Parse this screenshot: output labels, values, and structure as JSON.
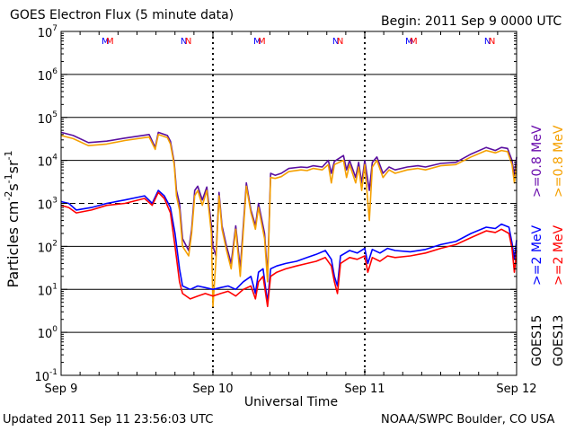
{
  "header": {
    "title": "GOES Electron Flux (5 minute data)",
    "begin": "Begin: 2011 Sep 9 0000 UTC"
  },
  "footer": {
    "updated": "Updated 2011 Sep 11 23:56:03 UTC",
    "credit": "NOAA/SWPC Boulder, CO USA"
  },
  "chart_data": {
    "type": "line",
    "title": "GOES Electron Flux (5 minute data)",
    "xlabel": "Universal Time",
    "ylabel": "Particles cm-2s-1sr-1",
    "yscale": "log",
    "ylim": [
      0.1,
      10000000
    ],
    "xlim": [
      0,
      3
    ],
    "x_unit": "days since 2011 Sep 9 0000 UTC",
    "x_ticks": [
      {
        "value": 0,
        "label": "Sep 9"
      },
      {
        "value": 1,
        "label": "Sep 10"
      },
      {
        "value": 2,
        "label": "Sep 11"
      },
      {
        "value": 3,
        "label": "Sep 12"
      }
    ],
    "y_ticks": [
      {
        "value": 0.1,
        "base": "10",
        "exp": "-1"
      },
      {
        "value": 1,
        "base": "10",
        "exp": "0"
      },
      {
        "value": 10,
        "base": "10",
        "exp": "1"
      },
      {
        "value": 100,
        "base": "10",
        "exp": "2"
      },
      {
        "value": 1000,
        "base": "10",
        "exp": "3"
      },
      {
        "value": 10000,
        "base": "10",
        "exp": "4"
      },
      {
        "value": 100000,
        "base": "10",
        "exp": "5"
      },
      {
        "value": 1000000,
        "base": "10",
        "exp": "6"
      },
      {
        "value": 10000000,
        "base": "10",
        "exp": "7"
      }
    ],
    "solid_gridlines": [
      1,
      10,
      100,
      10000,
      100000,
      1000000
    ],
    "dashed_gridlines": [
      1000
    ],
    "day_boundaries_dotted": [
      1,
      2
    ],
    "local_noon_markers": [
      {
        "x": 0.29,
        "label": "M",
        "satellites": [
          "GOES15",
          "GOES13"
        ]
      },
      {
        "x": 0.81,
        "label": "N",
        "satellites": [
          "GOES15",
          "GOES13"
        ]
      },
      {
        "x": 1.29,
        "label": "M",
        "satellites": [
          "GOES15",
          "GOES13"
        ]
      },
      {
        "x": 1.81,
        "label": "N",
        "satellites": [
          "GOES15",
          "GOES13"
        ]
      },
      {
        "x": 2.29,
        "label": "M",
        "satellites": [
          "GOES15",
          "GOES13"
        ]
      },
      {
        "x": 2.81,
        "label": "N",
        "satellites": [
          "GOES15",
          "GOES13"
        ]
      }
    ],
    "legend": {
      "position": "right-vertical",
      "energies": [
        {
          "label": ">=2 MeV",
          "color_goes15": "#0000ff",
          "color_goes13": "#ff0000"
        },
        {
          "label": ">=0.8 MeV",
          "color_goes15": "#6a0dad",
          "color_goes13": "#f5a000"
        }
      ],
      "satellites": [
        "GOES15",
        "GOES13"
      ]
    },
    "series": [
      {
        "name": "GOES15 >=0.8 MeV",
        "color": "#5a0fa0",
        "points": [
          [
            0,
            45000
          ],
          [
            0.08,
            38000
          ],
          [
            0.18,
            26000
          ],
          [
            0.3,
            28000
          ],
          [
            0.42,
            33000
          ],
          [
            0.58,
            40000
          ],
          [
            0.62,
            20000
          ],
          [
            0.64,
            45000
          ],
          [
            0.7,
            38000
          ],
          [
            0.72,
            28000
          ],
          [
            0.745,
            9000
          ],
          [
            0.76,
            2000
          ],
          [
            0.78,
            1000
          ],
          [
            0.8,
            150
          ],
          [
            0.84,
            80
          ],
          [
            0.86,
            250
          ],
          [
            0.88,
            2000
          ],
          [
            0.9,
            2500
          ],
          [
            0.93,
            1200
          ],
          [
            0.96,
            2400
          ],
          [
            0.99,
            300
          ],
          [
            1.0,
            100
          ],
          [
            1.02,
            60
          ],
          [
            1.04,
            1800
          ],
          [
            1.06,
            300
          ],
          [
            1.09,
            100
          ],
          [
            1.12,
            40
          ],
          [
            1.15,
            300
          ],
          [
            1.18,
            30
          ],
          [
            1.22,
            3000
          ],
          [
            1.25,
            700
          ],
          [
            1.28,
            300
          ],
          [
            1.3,
            1000
          ],
          [
            1.34,
            200
          ],
          [
            1.36,
            20
          ],
          [
            1.38,
            5000
          ],
          [
            1.41,
            4500
          ],
          [
            1.45,
            5000
          ],
          [
            1.5,
            6500
          ],
          [
            1.58,
            7000
          ],
          [
            1.62,
            6800
          ],
          [
            1.66,
            7500
          ],
          [
            1.72,
            7000
          ],
          [
            1.76,
            10000
          ],
          [
            1.78,
            5000
          ],
          [
            1.8,
            9500
          ],
          [
            1.86,
            13000
          ],
          [
            1.88,
            6000
          ],
          [
            1.9,
            10000
          ],
          [
            1.94,
            4000
          ],
          [
            1.96,
            9000
          ],
          [
            1.98,
            3000
          ],
          [
            2.0,
            10000
          ],
          [
            2.03,
            2000
          ],
          [
            2.05,
            9000
          ],
          [
            2.08,
            12000
          ],
          [
            2.12,
            5000
          ],
          [
            2.16,
            7000
          ],
          [
            2.2,
            6000
          ],
          [
            2.28,
            7000
          ],
          [
            2.35,
            7500
          ],
          [
            2.4,
            7000
          ],
          [
            2.5,
            8500
          ],
          [
            2.6,
            9000
          ],
          [
            2.7,
            14000
          ],
          [
            2.8,
            20000
          ],
          [
            2.86,
            17000
          ],
          [
            2.9,
            20000
          ],
          [
            2.94,
            19000
          ],
          [
            2.97,
            10000
          ],
          [
            2.985,
            4500
          ],
          [
            3.0,
            12000
          ]
        ]
      },
      {
        "name": "GOES13 >=0.8 MeV",
        "color": "#f5a000",
        "points": [
          [
            0,
            38000
          ],
          [
            0.08,
            32000
          ],
          [
            0.18,
            22000
          ],
          [
            0.3,
            24000
          ],
          [
            0.42,
            29000
          ],
          [
            0.58,
            35000
          ],
          [
            0.62,
            18000
          ],
          [
            0.64,
            40000
          ],
          [
            0.7,
            34000
          ],
          [
            0.72,
            24000
          ],
          [
            0.745,
            8000
          ],
          [
            0.76,
            1500
          ],
          [
            0.78,
            700
          ],
          [
            0.8,
            100
          ],
          [
            0.84,
            60
          ],
          [
            0.86,
            200
          ],
          [
            0.88,
            1500
          ],
          [
            0.9,
            2000
          ],
          [
            0.93,
            900
          ],
          [
            0.96,
            2000
          ],
          [
            0.99,
            200
          ],
          [
            1.0,
            4
          ],
          [
            1.02,
            50
          ],
          [
            1.04,
            1500
          ],
          [
            1.06,
            250
          ],
          [
            1.09,
            80
          ],
          [
            1.12,
            30
          ],
          [
            1.15,
            250
          ],
          [
            1.18,
            20
          ],
          [
            1.22,
            2500
          ],
          [
            1.25,
            600
          ],
          [
            1.28,
            250
          ],
          [
            1.3,
            800
          ],
          [
            1.34,
            150
          ],
          [
            1.36,
            15
          ],
          [
            1.38,
            4000
          ],
          [
            1.41,
            3800
          ],
          [
            1.45,
            4200
          ],
          [
            1.5,
            5500
          ],
          [
            1.58,
            6000
          ],
          [
            1.62,
            5800
          ],
          [
            1.66,
            6500
          ],
          [
            1.72,
            6000
          ],
          [
            1.76,
            8000
          ],
          [
            1.78,
            3000
          ],
          [
            1.8,
            8000
          ],
          [
            1.86,
            10000
          ],
          [
            1.88,
            4000
          ],
          [
            1.9,
            8000
          ],
          [
            1.94,
            3000
          ],
          [
            1.96,
            7000
          ],
          [
            1.98,
            2000
          ],
          [
            2.0,
            8000
          ],
          [
            2.03,
            400
          ],
          [
            2.05,
            7000
          ],
          [
            2.08,
            10000
          ],
          [
            2.12,
            4000
          ],
          [
            2.16,
            6000
          ],
          [
            2.2,
            5000
          ],
          [
            2.28,
            6000
          ],
          [
            2.35,
            6500
          ],
          [
            2.4,
            6000
          ],
          [
            2.5,
            7500
          ],
          [
            2.6,
            8000
          ],
          [
            2.7,
            12000
          ],
          [
            2.8,
            17000
          ],
          [
            2.86,
            15000
          ],
          [
            2.9,
            17000
          ],
          [
            2.94,
            16000
          ],
          [
            2.97,
            8000
          ],
          [
            2.985,
            3000
          ],
          [
            3.0,
            8000
          ]
        ]
      },
      {
        "name": "GOES15 >=2 MeV",
        "color": "#0000ff",
        "points": [
          [
            0,
            1100
          ],
          [
            0.05,
            1000
          ],
          [
            0.1,
            700
          ],
          [
            0.2,
            800
          ],
          [
            0.3,
            1000
          ],
          [
            0.42,
            1200
          ],
          [
            0.55,
            1500
          ],
          [
            0.6,
            1000
          ],
          [
            0.64,
            2000
          ],
          [
            0.68,
            1500
          ],
          [
            0.72,
            800
          ],
          [
            0.75,
            200
          ],
          [
            0.78,
            30
          ],
          [
            0.8,
            12
          ],
          [
            0.85,
            10
          ],
          [
            0.9,
            12
          ],
          [
            0.95,
            11
          ],
          [
            1.0,
            10
          ],
          [
            1.05,
            11
          ],
          [
            1.1,
            12
          ],
          [
            1.15,
            10
          ],
          [
            1.2,
            15
          ],
          [
            1.25,
            20
          ],
          [
            1.28,
            8
          ],
          [
            1.3,
            25
          ],
          [
            1.33,
            30
          ],
          [
            1.36,
            5
          ],
          [
            1.38,
            30
          ],
          [
            1.42,
            35
          ],
          [
            1.48,
            40
          ],
          [
            1.55,
            45
          ],
          [
            1.62,
            55
          ],
          [
            1.68,
            65
          ],
          [
            1.74,
            80
          ],
          [
            1.78,
            50
          ],
          [
            1.8,
            20
          ],
          [
            1.82,
            12
          ],
          [
            1.84,
            60
          ],
          [
            1.9,
            80
          ],
          [
            1.95,
            70
          ],
          [
            2.0,
            90
          ],
          [
            2.02,
            40
          ],
          [
            2.05,
            85
          ],
          [
            2.1,
            70
          ],
          [
            2.15,
            90
          ],
          [
            2.2,
            80
          ],
          [
            2.3,
            75
          ],
          [
            2.4,
            85
          ],
          [
            2.5,
            110
          ],
          [
            2.6,
            130
          ],
          [
            2.7,
            200
          ],
          [
            2.8,
            280
          ],
          [
            2.86,
            260
          ],
          [
            2.9,
            330
          ],
          [
            2.95,
            280
          ],
          [
            2.97,
            120
          ],
          [
            2.985,
            50
          ],
          [
            3.0,
            140
          ]
        ]
      },
      {
        "name": "GOES13 >=2 MeV",
        "color": "#ff0000",
        "points": [
          [
            0,
            900
          ],
          [
            0.05,
            800
          ],
          [
            0.1,
            600
          ],
          [
            0.2,
            700
          ],
          [
            0.3,
            900
          ],
          [
            0.42,
            1000
          ],
          [
            0.55,
            1300
          ],
          [
            0.6,
            900
          ],
          [
            0.64,
            1800
          ],
          [
            0.68,
            1300
          ],
          [
            0.72,
            600
          ],
          [
            0.75,
            100
          ],
          [
            0.78,
            15
          ],
          [
            0.8,
            8
          ],
          [
            0.85,
            6
          ],
          [
            0.9,
            7
          ],
          [
            0.95,
            8
          ],
          [
            1.0,
            7
          ],
          [
            1.05,
            8
          ],
          [
            1.1,
            9
          ],
          [
            1.15,
            7
          ],
          [
            1.2,
            10
          ],
          [
            1.25,
            12
          ],
          [
            1.28,
            6
          ],
          [
            1.3,
            15
          ],
          [
            1.33,
            20
          ],
          [
            1.36,
            4
          ],
          [
            1.38,
            20
          ],
          [
            1.42,
            25
          ],
          [
            1.48,
            30
          ],
          [
            1.55,
            35
          ],
          [
            1.62,
            40
          ],
          [
            1.68,
            45
          ],
          [
            1.74,
            55
          ],
          [
            1.78,
            35
          ],
          [
            1.8,
            15
          ],
          [
            1.82,
            8
          ],
          [
            1.84,
            40
          ],
          [
            1.9,
            55
          ],
          [
            1.95,
            50
          ],
          [
            2.0,
            60
          ],
          [
            2.02,
            25
          ],
          [
            2.05,
            55
          ],
          [
            2.1,
            45
          ],
          [
            2.15,
            60
          ],
          [
            2.2,
            55
          ],
          [
            2.3,
            60
          ],
          [
            2.4,
            70
          ],
          [
            2.5,
            90
          ],
          [
            2.6,
            110
          ],
          [
            2.7,
            160
          ],
          [
            2.8,
            230
          ],
          [
            2.86,
            210
          ],
          [
            2.9,
            250
          ],
          [
            2.95,
            200
          ],
          [
            2.97,
            90
          ],
          [
            2.985,
            25
          ],
          [
            3.0,
            80
          ]
        ]
      }
    ]
  }
}
